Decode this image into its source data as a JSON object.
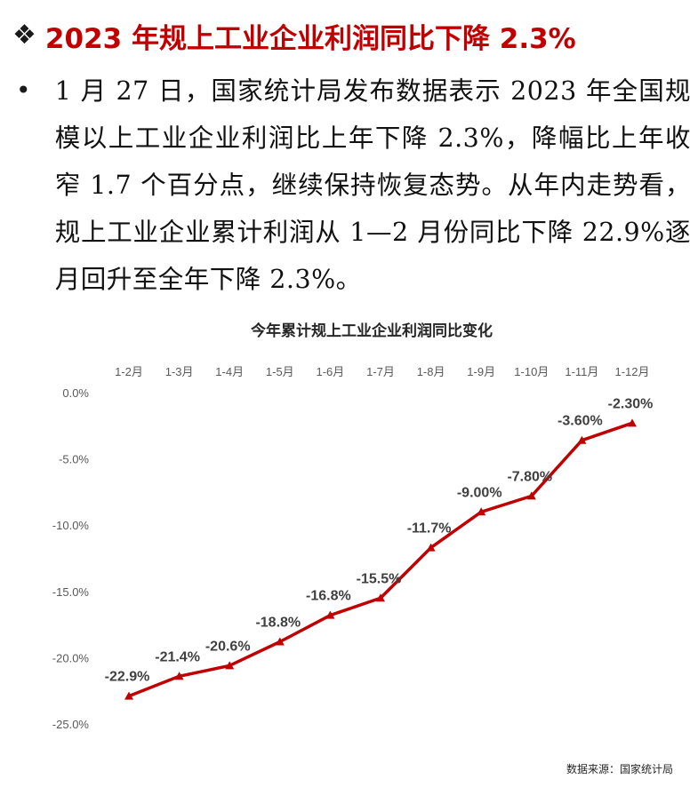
{
  "headline": {
    "marker": "❖",
    "text": "2023 年规上工业企业利润同比下降 2.3%"
  },
  "bullet": {
    "marker": "•",
    "text": "1 月 27 日，国家统计局发布数据表示 2023 年全国规模以上工业企业利润比上年下降 2.3%，降幅比上年收窄 1.7 个百分点，继续保持恢复态势。从年内走势看，规上工业企业累计利润从 1—2 月份同比下降 22.9%逐月回升至全年下降 2.3%。"
  },
  "source_note": "数据来源：国家统计局",
  "chart_data": {
    "type": "line",
    "title": "今年累计规上工业企业利润同比变化",
    "categories": [
      "1-2月",
      "1-3月",
      "1-4月",
      "1-5月",
      "1-6月",
      "1-7月",
      "1-8月",
      "1-9月",
      "1-10月",
      "1-11月",
      "1-12月"
    ],
    "series": [
      {
        "values": [
          -22.9,
          -21.4,
          -20.6,
          -18.8,
          -16.8,
          -15.5,
          -11.7,
          -9.0,
          -7.8,
          -3.6,
          -2.3
        ],
        "labels": [
          "-22.9%",
          "-21.4%",
          "-20.6%",
          "-18.8%",
          "-16.8%",
          "-15.5%",
          "-11.7%",
          "-9.00%",
          "-7.80%",
          "-3.60%",
          "-2.30%"
        ],
        "color": "#c00000"
      }
    ],
    "y_ticks": [
      0,
      -5,
      -10,
      -15,
      -20,
      -25
    ],
    "y_tick_labels": [
      "0.0%",
      "-5.0%",
      "-10.0%",
      "-15.0%",
      "-20.0%",
      "-25.0%"
    ],
    "ylim": [
      -25,
      0
    ],
    "x_axis_position": "top",
    "grid": false,
    "legend": "none",
    "marker": "triangle"
  }
}
